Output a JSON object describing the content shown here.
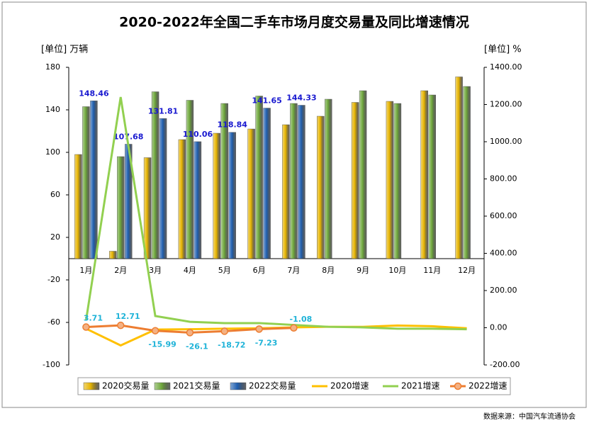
{
  "chart_data": {
    "type": "bar_line",
    "title": "2020-2022年全国二手车市场月度交易量及同比增速情况",
    "y_unit": "[单位] 万辆",
    "y2_unit": "[单位] %",
    "source": "数据来源：中国汽车流通协会",
    "categories": [
      "1月",
      "2月",
      "3月",
      "4月",
      "5月",
      "6月",
      "7月",
      "8月",
      "9月",
      "10月",
      "11月",
      "12月"
    ],
    "ylim": [
      -100,
      180
    ],
    "yticks": [
      -100,
      -60,
      -20,
      20,
      60,
      100,
      140,
      180
    ],
    "y2lim": [
      -200,
      1400
    ],
    "y2ticks": [
      {
        "value": -200,
        "label": "-200.00"
      },
      {
        "value": 0,
        "label": "0.00"
      },
      {
        "value": 200,
        "label": "200.00"
      },
      {
        "value": 400,
        "label": "400.00"
      },
      {
        "value": 600,
        "label": "600.00"
      },
      {
        "value": 800,
        "label": "800.00"
      },
      {
        "value": 1000,
        "label": "1000.00"
      },
      {
        "value": 1200,
        "label": "1200.00"
      },
      {
        "value": 1400,
        "label": "1400.00"
      }
    ],
    "series": [
      {
        "name": "2020交易量",
        "kind": "bar",
        "color": "#e6b400",
        "values": [
          98,
          7,
          95,
          112,
          118,
          122,
          126,
          134,
          147,
          148,
          158,
          171
        ]
      },
      {
        "name": "2021交易量",
        "kind": "bar",
        "color": "#6fa83c",
        "values": [
          143,
          96,
          157,
          149,
          146,
          153,
          146,
          150,
          158,
          146,
          154,
          162
        ]
      },
      {
        "name": "2022交易量",
        "kind": "bar",
        "color": "#1f5fb0",
        "values": [
          148.46,
          107.68,
          131.81,
          110.06,
          118.84,
          141.65,
          144.33,
          null,
          null,
          null,
          null,
          null
        ],
        "labels": true
      },
      {
        "name": "2020增速",
        "kind": "line",
        "axis": "y2",
        "color": "#ffc000",
        "values": [
          -5,
          -95,
          -10,
          -8,
          -5,
          -3,
          2,
          5,
          5,
          12,
          8,
          -3
        ]
      },
      {
        "name": "2021增速",
        "kind": "line",
        "axis": "y2",
        "color": "#92d050",
        "values": [
          40,
          1240,
          63,
          32,
          25,
          25,
          15,
          5,
          2,
          -5,
          -5,
          -8
        ]
      },
      {
        "name": "2022增速",
        "kind": "line",
        "axis": "y2",
        "color": "#ed7d31",
        "marker": true,
        "values": [
          3.71,
          12.71,
          -15.99,
          -26.1,
          -18.72,
          -7.23,
          -1.08,
          null,
          null,
          null,
          null,
          null
        ],
        "labels": true
      }
    ]
  }
}
